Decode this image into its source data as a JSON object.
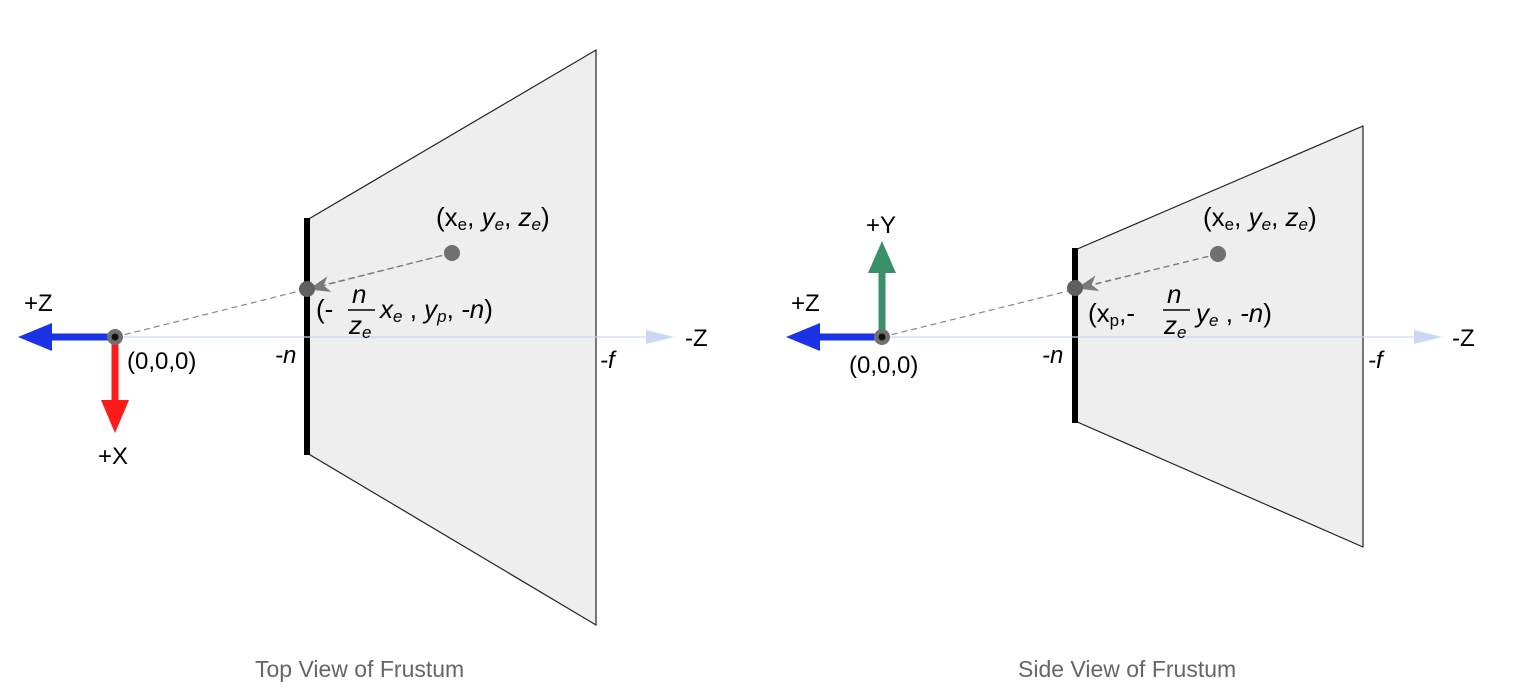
{
  "colors": {
    "frustum_fill": "#eeeeee",
    "frustum_stroke": "#222222",
    "axis_z_blue": "#1a33e6",
    "axis_x_red": "#ff1a1a",
    "axis_y_green": "#3a9068",
    "faint_axis": "#c9d8f3",
    "point_gray": "#707070",
    "caption_gray": "#666666"
  },
  "top_view": {
    "caption": "Top View of Frustum",
    "plus_z": "+Z",
    "minus_z": "-Z",
    "plus_x": "+X",
    "origin": "(0,0,0)",
    "near": "-n",
    "far": "-f",
    "point_eye": {
      "open": "(x",
      "sub": "e",
      "mid1": ", ",
      "y": "y",
      "ysub": "e",
      "mid2": ", ",
      "z": "z",
      "zsub": "e",
      "close": ")"
    },
    "point_proj": {
      "open": "(-",
      "num": "n",
      "den": "z",
      "densub": "e",
      "x": "x",
      "xsub": "e",
      "mid1": " , ",
      "y": "y",
      "ysub": "p",
      "mid2": ", ",
      "last": "-n",
      "close": ")"
    }
  },
  "side_view": {
    "caption": "Side View of Frustum",
    "plus_z": "+Z",
    "minus_z": "-Z",
    "plus_y": "+Y",
    "origin": "(0,0,0)",
    "near": "-n",
    "far": "-f",
    "point_eye": {
      "open": "(x",
      "sub": "e",
      "mid1": ", ",
      "y": "y",
      "ysub": "e",
      "mid2": ", ",
      "z": "z",
      "zsub": "e",
      "close": ")"
    },
    "point_proj": {
      "open": "(x",
      "sub": "p",
      "mid0": ",- ",
      "num": "n",
      "den": "z",
      "densub": "e",
      "y": "y",
      "ysub": "e",
      "mid1": " , ",
      "last": "-n",
      "close": ")"
    }
  }
}
